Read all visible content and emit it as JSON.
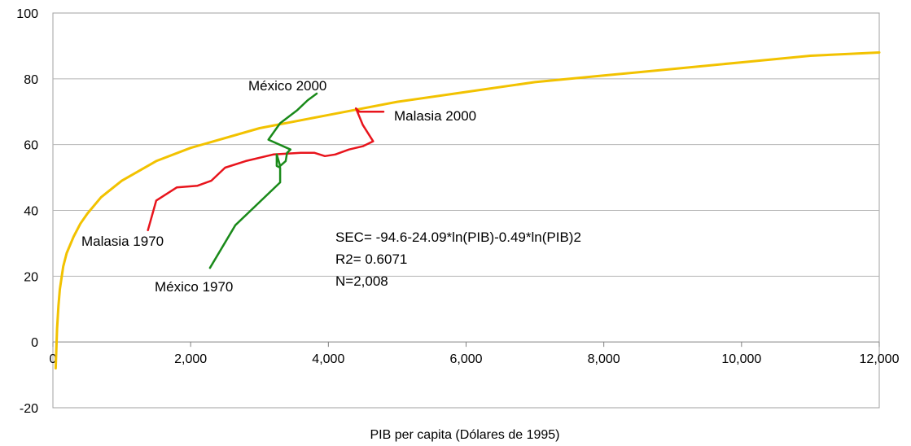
{
  "chart_data": {
    "type": "line",
    "xlabel": "PIB per capita (Dólares de 1995)",
    "ylabel": "",
    "xlim": [
      0,
      12000
    ],
    "ylim": [
      -20,
      100
    ],
    "x_ticks": [
      0,
      2000,
      4000,
      6000,
      8000,
      10000,
      12000
    ],
    "x_tick_labels": [
      "0",
      "2,000",
      "4,000",
      "6,000",
      "8,000",
      "10,000",
      "12,000"
    ],
    "y_ticks": [
      -20,
      0,
      20,
      40,
      60,
      80,
      100
    ],
    "y_tick_labels": [
      "-20",
      "0",
      "20",
      "40",
      "60",
      "80",
      "100"
    ],
    "grid": "horizontal",
    "legend": "none",
    "series": [
      {
        "name": "",
        "color": "#f2c200",
        "x": [
          40,
          60,
          80,
          100,
          150,
          200,
          300,
          400,
          500,
          700,
          1000,
          1500,
          2000,
          3000,
          4000,
          5000,
          6000,
          7000,
          8000,
          9000,
          10000,
          11000,
          12000
        ],
        "y": [
          -8,
          4,
          11,
          16,
          23,
          27,
          32,
          36,
          39,
          44,
          49,
          55,
          59,
          65,
          69,
          73,
          76,
          79,
          81,
          83,
          85,
          87,
          88
        ]
      },
      {
        "name": "",
        "color": "#e8141c",
        "x": [
          1380,
          1500,
          1800,
          2100,
          2300,
          2500,
          2800,
          3200,
          3600,
          3800,
          3950,
          4100,
          4300,
          4500,
          4650,
          4500,
          4400,
          4450,
          4600,
          4800
        ],
        "y": [
          34,
          43,
          47,
          47.5,
          49,
          53,
          55,
          57,
          57.5,
          57.5,
          56.5,
          57,
          58.5,
          59.5,
          61,
          66,
          71,
          70,
          70,
          70
        ]
      },
      {
        "name": "",
        "color": "#1a8a1a",
        "x": [
          2280,
          2650,
          3300,
          3300,
          3250,
          3250,
          3300,
          3380,
          3400,
          3450,
          3130,
          3300,
          3550,
          3700,
          3830
        ],
        "y": [
          22.5,
          35.5,
          48.5,
          53,
          53.5,
          57,
          53.5,
          55,
          57.5,
          58.5,
          61.5,
          66.5,
          70.5,
          73.5,
          75.5
        ]
      }
    ],
    "annotations": {
      "malasia_2000": "Malasia 2000",
      "malasia_1970": "Malasia 1970",
      "mexico_2000": "México 2000",
      "mexico_1970": "México 1970",
      "equation": "SEC= -94.6-24.09*ln(PIB)-0.49*ln(PIB)2",
      "r2": "R2= 0.6071",
      "n": "N=2,008"
    }
  }
}
